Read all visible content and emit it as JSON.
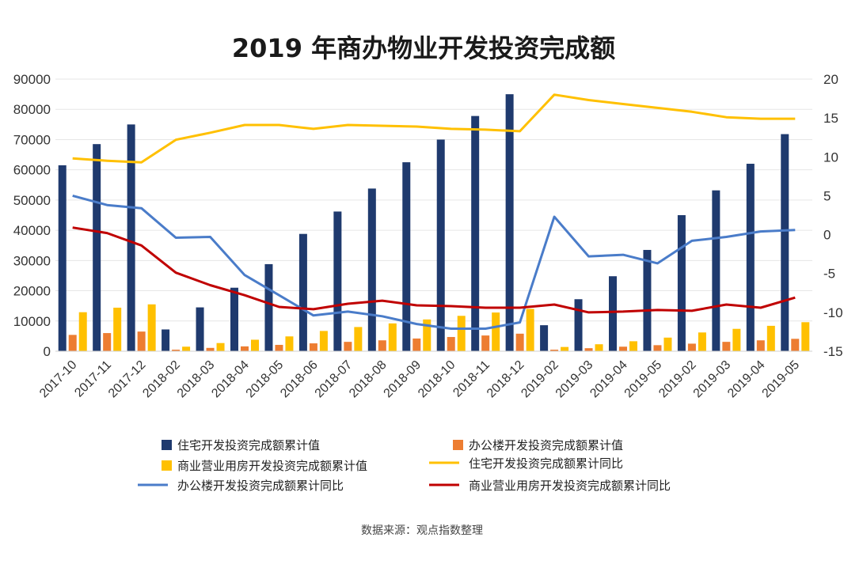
{
  "chart_data": {
    "type": "bar",
    "title": "2019 年商办物业开发投资完成额",
    "source": "数据来源：观点指数整理",
    "categories": [
      "2017-10",
      "2017-11",
      "2017-12",
      "2018-02",
      "2018-03",
      "2018-04",
      "2018-05",
      "2018-06",
      "2018-07",
      "2018-08",
      "2018-09",
      "2018-10",
      "2018-11",
      "2018-12",
      "2019-02",
      "2019-03",
      "2019-04",
      "2019-05",
      "2019-02",
      "2019-03",
      "2019-04",
      "2019-05"
    ],
    "y_left": {
      "min": 0,
      "max": 90000,
      "ticks": [
        "0",
        "10000",
        "20000",
        "30000",
        "40000",
        "50000",
        "60000",
        "70000",
        "80000",
        "90000"
      ]
    },
    "y_right": {
      "min": -15,
      "max": 20,
      "ticks": [
        "-15",
        "-10",
        "-5",
        "0",
        "5",
        "10",
        "15",
        "20"
      ]
    },
    "grid": true,
    "legend_position": "bottom",
    "series": [
      {
        "name": "住宅开发投资完成额累计值",
        "kind": "bar",
        "axis": "left",
        "color": "#1f3a6e",
        "values": [
          61500,
          68500,
          75000,
          7200,
          14500,
          21000,
          28800,
          38800,
          46200,
          53800,
          62500,
          70000,
          77800,
          85000,
          8600,
          17200,
          24800,
          33500,
          45000,
          53200,
          62000,
          71800
        ]
      },
      {
        "name": "办公楼开发投资完成额累计值",
        "kind": "bar",
        "axis": "left",
        "color": "#ed7d31",
        "values": [
          5400,
          6000,
          6500,
          500,
          1100,
          1600,
          2100,
          2600,
          3100,
          3600,
          4200,
          4700,
          5200,
          5800,
          500,
          1000,
          1500,
          2000,
          2500,
          3100,
          3600,
          4100
        ]
      },
      {
        "name": "商业营业用房开发投资完成额累计值",
        "kind": "bar",
        "axis": "left",
        "color": "#ffc000",
        "values": [
          12900,
          14400,
          15500,
          1500,
          2700,
          3800,
          4900,
          6700,
          8000,
          9200,
          10500,
          11700,
          12800,
          14000,
          1400,
          2300,
          3300,
          4500,
          6200,
          7400,
          8400,
          9600
        ]
      },
      {
        "name": "住宅开发投资完成额累计同比",
        "kind": "line",
        "axis": "right",
        "color": "#ffc000",
        "values": [
          9.8,
          9.5,
          9.3,
          12.2,
          13.1,
          14.1,
          14.1,
          13.6,
          14.1,
          14.0,
          13.9,
          13.6,
          13.5,
          13.3,
          18.0,
          17.3,
          16.8,
          16.3,
          15.8,
          15.1,
          14.9,
          14.9
        ]
      },
      {
        "name": "办公楼开发投资完成额累计同比",
        "kind": "line",
        "axis": "right",
        "color": "#4a7cc9",
        "values": [
          5.0,
          3.8,
          3.4,
          -0.4,
          -0.3,
          -5.2,
          -7.8,
          -10.4,
          -9.9,
          -10.5,
          -11.5,
          -12.1,
          -12.1,
          -11.3,
          2.3,
          -2.8,
          -2.6,
          -3.7,
          -0.8,
          -0.3,
          0.4,
          0.6
        ]
      },
      {
        "name": "商业营业用房开发投资完成额累计同比",
        "kind": "line",
        "axis": "right",
        "color": "#c00000",
        "values": [
          0.9,
          0.2,
          -1.4,
          -4.9,
          -6.5,
          -7.8,
          -9.3,
          -9.6,
          -8.9,
          -8.5,
          -9.1,
          -9.2,
          -9.4,
          -9.4,
          -9.0,
          -10.0,
          -9.9,
          -9.7,
          -9.8,
          -9.0,
          -9.4,
          -8.1
        ]
      }
    ]
  }
}
